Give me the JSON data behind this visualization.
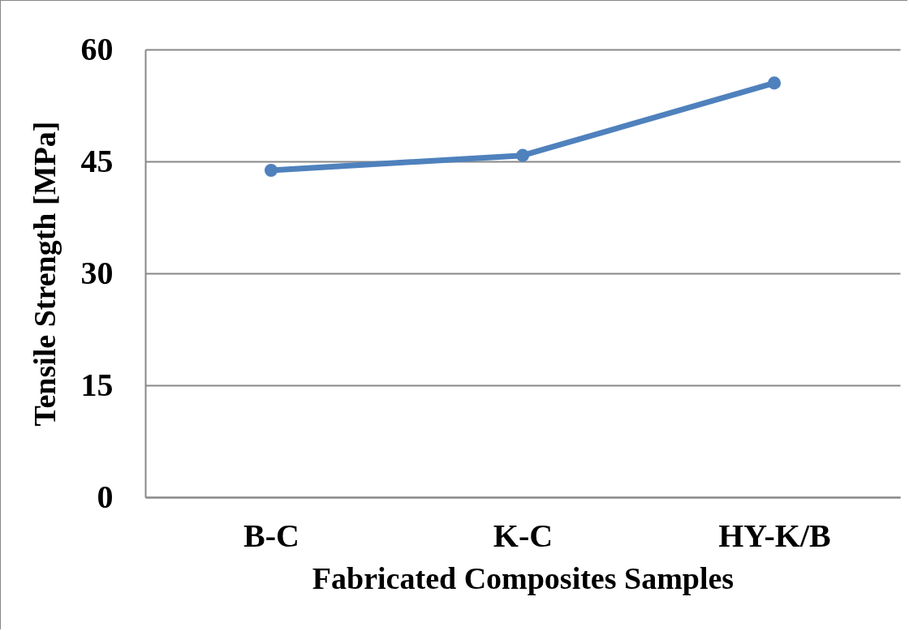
{
  "chart_data": {
    "type": "line",
    "xlabel": "Fabricated Composites Samples",
    "ylabel": "Tensile Strength [MPa]",
    "categories": [
      "B-C",
      "K-C",
      "HY-K/B"
    ],
    "series": [
      {
        "color": "#4f81bd",
        "values": [
          43.8,
          45.8,
          55.5
        ]
      }
    ],
    "ylim": [
      0,
      60
    ],
    "yticks": [
      0,
      15,
      30,
      45,
      60
    ],
    "grid": "y",
    "marker": "circle",
    "line_style": "solid"
  }
}
